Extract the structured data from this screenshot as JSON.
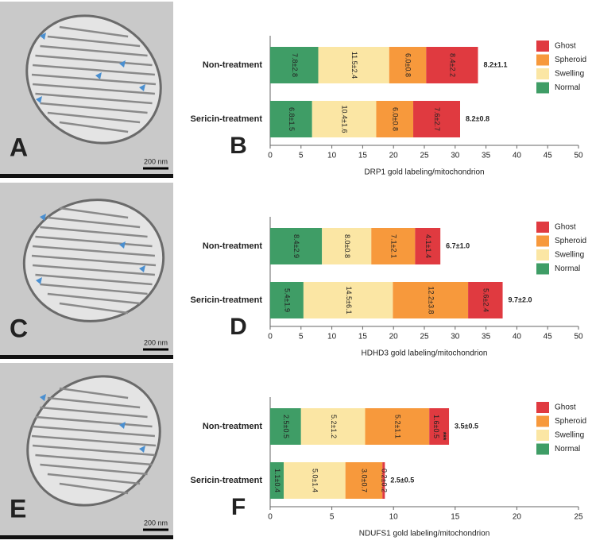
{
  "images": [
    {
      "label": "A",
      "scale_bar": "200 nm"
    },
    {
      "label": "C",
      "scale_bar": "200 nm"
    },
    {
      "label": "E",
      "scale_bar": "200 nm"
    }
  ],
  "chart_data": [
    {
      "type": "stacked-barh",
      "panel": "B",
      "x_label": "DRP1 gold labeling/mitochondrion",
      "categories": [
        "Non-treatment",
        "Sericin-treatment"
      ],
      "series": [
        {
          "name": "Normal",
          "color": "#3f9d66",
          "values": [
            7.8,
            6.8
          ],
          "value_labels": [
            "7.8±2.8",
            "6.8±1.5"
          ]
        },
        {
          "name": "Swelling",
          "color": "#fbe6a4",
          "values": [
            11.5,
            10.4
          ],
          "value_labels": [
            "11.5±2.4",
            "10.4±1.6"
          ]
        },
        {
          "name": "Spheroid",
          "color": "#f7993c",
          "values": [
            6.0,
            6.0
          ],
          "value_labels": [
            "6.0±0.8",
            "6.0±0.8"
          ]
        },
        {
          "name": "Ghost",
          "color": "#e03a40",
          "values": [
            8.4,
            7.6
          ],
          "value_labels": [
            "8.4±2.2",
            "7.6±2.7"
          ]
        }
      ],
      "totals": [
        "8.2±1.1",
        "8.2±0.8"
      ],
      "xlim": [
        0,
        50
      ],
      "xticks": [
        0,
        5,
        10,
        15,
        20,
        25,
        30,
        35,
        40,
        45,
        50
      ]
    },
    {
      "type": "stacked-barh",
      "panel": "D",
      "x_label": "HDHD3 gold labeling/mitochondrion",
      "categories": [
        "Non-treatment",
        "Sericin-treatment"
      ],
      "series": [
        {
          "name": "Normal",
          "color": "#3f9d66",
          "values": [
            8.4,
            5.4
          ],
          "value_labels": [
            "8.4±2.9",
            "5.4±1.9"
          ]
        },
        {
          "name": "Swelling",
          "color": "#fbe6a4",
          "values": [
            8.0,
            14.5
          ],
          "value_labels": [
            "8.0±0.8",
            "14.5±6.1"
          ]
        },
        {
          "name": "Spheroid",
          "color": "#f7993c",
          "values": [
            7.1,
            12.2
          ],
          "value_labels": [
            "7.1±2.1",
            "12.2±3.8"
          ]
        },
        {
          "name": "Ghost",
          "color": "#e03a40",
          "values": [
            4.1,
            5.6
          ],
          "value_labels": [
            "4.1±1.4",
            "5.6±2.4"
          ]
        }
      ],
      "totals": [
        "6.7±1.0",
        "9.7±2.0"
      ],
      "xlim": [
        0,
        50
      ],
      "xticks": [
        0,
        5,
        10,
        15,
        20,
        25,
        30,
        35,
        40,
        45,
        50
      ]
    },
    {
      "type": "stacked-barh",
      "panel": "F",
      "x_label": "NDUFS1 gold labeling/mitochondrion",
      "categories": [
        "Non-treatment",
        "Sericin-treatment"
      ],
      "series": [
        {
          "name": "Normal",
          "color": "#3f9d66",
          "values": [
            2.5,
            1.1
          ],
          "value_labels": [
            "2.5±0.5",
            "1.1±0.4"
          ]
        },
        {
          "name": "Swelling",
          "color": "#fbe6a4",
          "values": [
            5.2,
            5.0
          ],
          "value_labels": [
            "5.2±1.2",
            "5.0±1.4"
          ]
        },
        {
          "name": "Spheroid",
          "color": "#f7993c",
          "values": [
            5.2,
            3.0
          ],
          "value_labels": [
            "5.2±1.1",
            "3.0±0.7"
          ]
        },
        {
          "name": "Ghost",
          "color": "#e03a40",
          "values": [
            1.6,
            0.2
          ],
          "value_labels": [
            "1.6±0.5",
            "0.2±0.2"
          ],
          "flags": [
            "***",
            null
          ]
        }
      ],
      "totals": [
        "3.5±0.5",
        "2.5±0.5"
      ],
      "xlim": [
        0,
        25
      ],
      "xticks": [
        0,
        5,
        10,
        15,
        20,
        25
      ]
    }
  ]
}
